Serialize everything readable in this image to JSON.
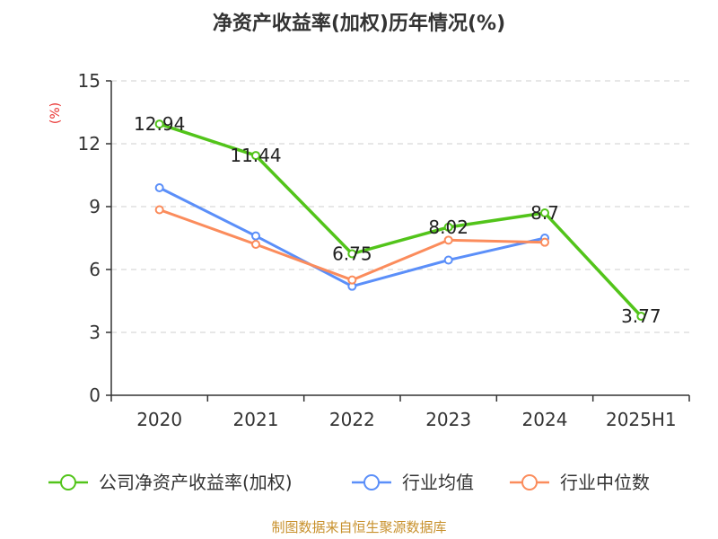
{
  "chart_data": {
    "type": "line",
    "title": "净资产收益率(加权)历年情况(%)",
    "ylabel": "(%)",
    "categories": [
      "2020",
      "2021",
      "2022",
      "2023",
      "2024",
      "2025H1"
    ],
    "yticks": [
      "0",
      "3",
      "6",
      "9",
      "12",
      "15"
    ],
    "ylim": [
      0,
      15
    ],
    "grid": true,
    "legend_position": "bottom",
    "series": [
      {
        "name": "公司净资产收益率(加权)",
        "color": "#52c41a",
        "values": [
          12.94,
          11.44,
          6.75,
          8.02,
          8.7,
          3.77
        ],
        "labels": [
          "12.94",
          "11.44",
          "6.75",
          "8.02",
          "8.7",
          "3.77"
        ]
      },
      {
        "name": "行业均值",
        "color": "#5b8ff9",
        "values": [
          9.9,
          7.6,
          5.2,
          6.45,
          7.5,
          null
        ]
      },
      {
        "name": "行业中位数",
        "color": "#fb8c5c",
        "values": [
          8.85,
          7.2,
          5.5,
          7.4,
          7.3,
          null
        ]
      }
    ],
    "source": "制图数据来自恒生聚源数据库"
  }
}
